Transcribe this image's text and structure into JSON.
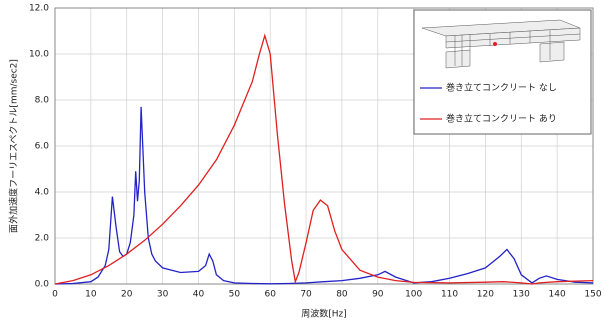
{
  "chart_data": {
    "type": "line",
    "xlabel": "周波数[Hz]",
    "ylabel": "面外加速度フーリエスペクトル[mm/sec2]",
    "xlim": [
      0,
      150
    ],
    "xticks": [
      0,
      10,
      20,
      30,
      40,
      50,
      60,
      70,
      80,
      90,
      100,
      110,
      120,
      130,
      140,
      150
    ],
    "ylim": [
      0,
      12
    ],
    "yticks": [
      {
        "value": 0,
        "label": "0.0"
      },
      {
        "value": 2,
        "label": "2.0"
      },
      {
        "value": 4,
        "label": "4.0"
      },
      {
        "value": 6,
        "label": "6.0"
      },
      {
        "value": 8,
        "label": "8.0"
      },
      {
        "value": 10,
        "label": "10.0"
      },
      {
        "value": 12,
        "label": "12.0"
      }
    ],
    "grid": true,
    "legend": "upper right",
    "series": [
      {
        "name": "巻き立てコンクリート なし",
        "color": "#2323c8",
        "x": [
          0,
          5,
          10,
          12,
          14,
          15,
          16,
          17,
          18,
          19,
          20,
          21,
          22,
          22.5,
          23,
          23.5,
          24,
          25,
          26,
          27,
          28,
          30,
          35,
          40,
          42,
          43,
          44,
          45,
          47,
          50,
          55,
          60,
          65,
          70,
          75,
          80,
          85,
          90,
          92,
          95,
          100,
          105,
          110,
          115,
          120,
          124,
          126,
          128,
          130,
          133,
          135,
          137,
          140,
          145,
          150
        ],
        "values": [
          0,
          0.02,
          0.1,
          0.3,
          0.8,
          1.5,
          3.8,
          2.5,
          1.4,
          1.2,
          1.3,
          1.8,
          3.0,
          4.9,
          3.6,
          4.5,
          7.7,
          4.0,
          2.0,
          1.3,
          1.0,
          0.7,
          0.5,
          0.55,
          0.8,
          1.3,
          1.0,
          0.4,
          0.15,
          0.05,
          0.02,
          0.01,
          0.02,
          0.05,
          0.1,
          0.15,
          0.25,
          0.4,
          0.55,
          0.3,
          0.05,
          0.1,
          0.25,
          0.45,
          0.7,
          1.2,
          1.5,
          1.1,
          0.4,
          0.05,
          0.25,
          0.35,
          0.2,
          0.08,
          0.05
        ]
      },
      {
        "name": "巻き立てコンクリート あり",
        "color": "#e02020",
        "x": [
          0,
          5,
          10,
          15,
          20,
          25,
          30,
          35,
          40,
          45,
          50,
          55,
          57,
          58.5,
          60,
          62,
          64,
          66,
          67,
          68,
          70,
          72,
          74,
          76,
          78,
          80,
          85,
          90,
          95,
          100,
          110,
          120,
          125,
          130,
          133,
          135,
          140,
          150
        ],
        "values": [
          0,
          0.15,
          0.4,
          0.8,
          1.3,
          1.9,
          2.6,
          3.4,
          4.3,
          5.4,
          6.9,
          8.8,
          10.0,
          10.8,
          10.0,
          6.5,
          3.5,
          1.0,
          0.1,
          0.5,
          1.8,
          3.2,
          3.65,
          3.4,
          2.3,
          1.5,
          0.6,
          0.3,
          0.15,
          0.07,
          0.05,
          0.08,
          0.1,
          0.05,
          0.0,
          0.05,
          0.1,
          0.15
        ]
      }
    ]
  }
}
